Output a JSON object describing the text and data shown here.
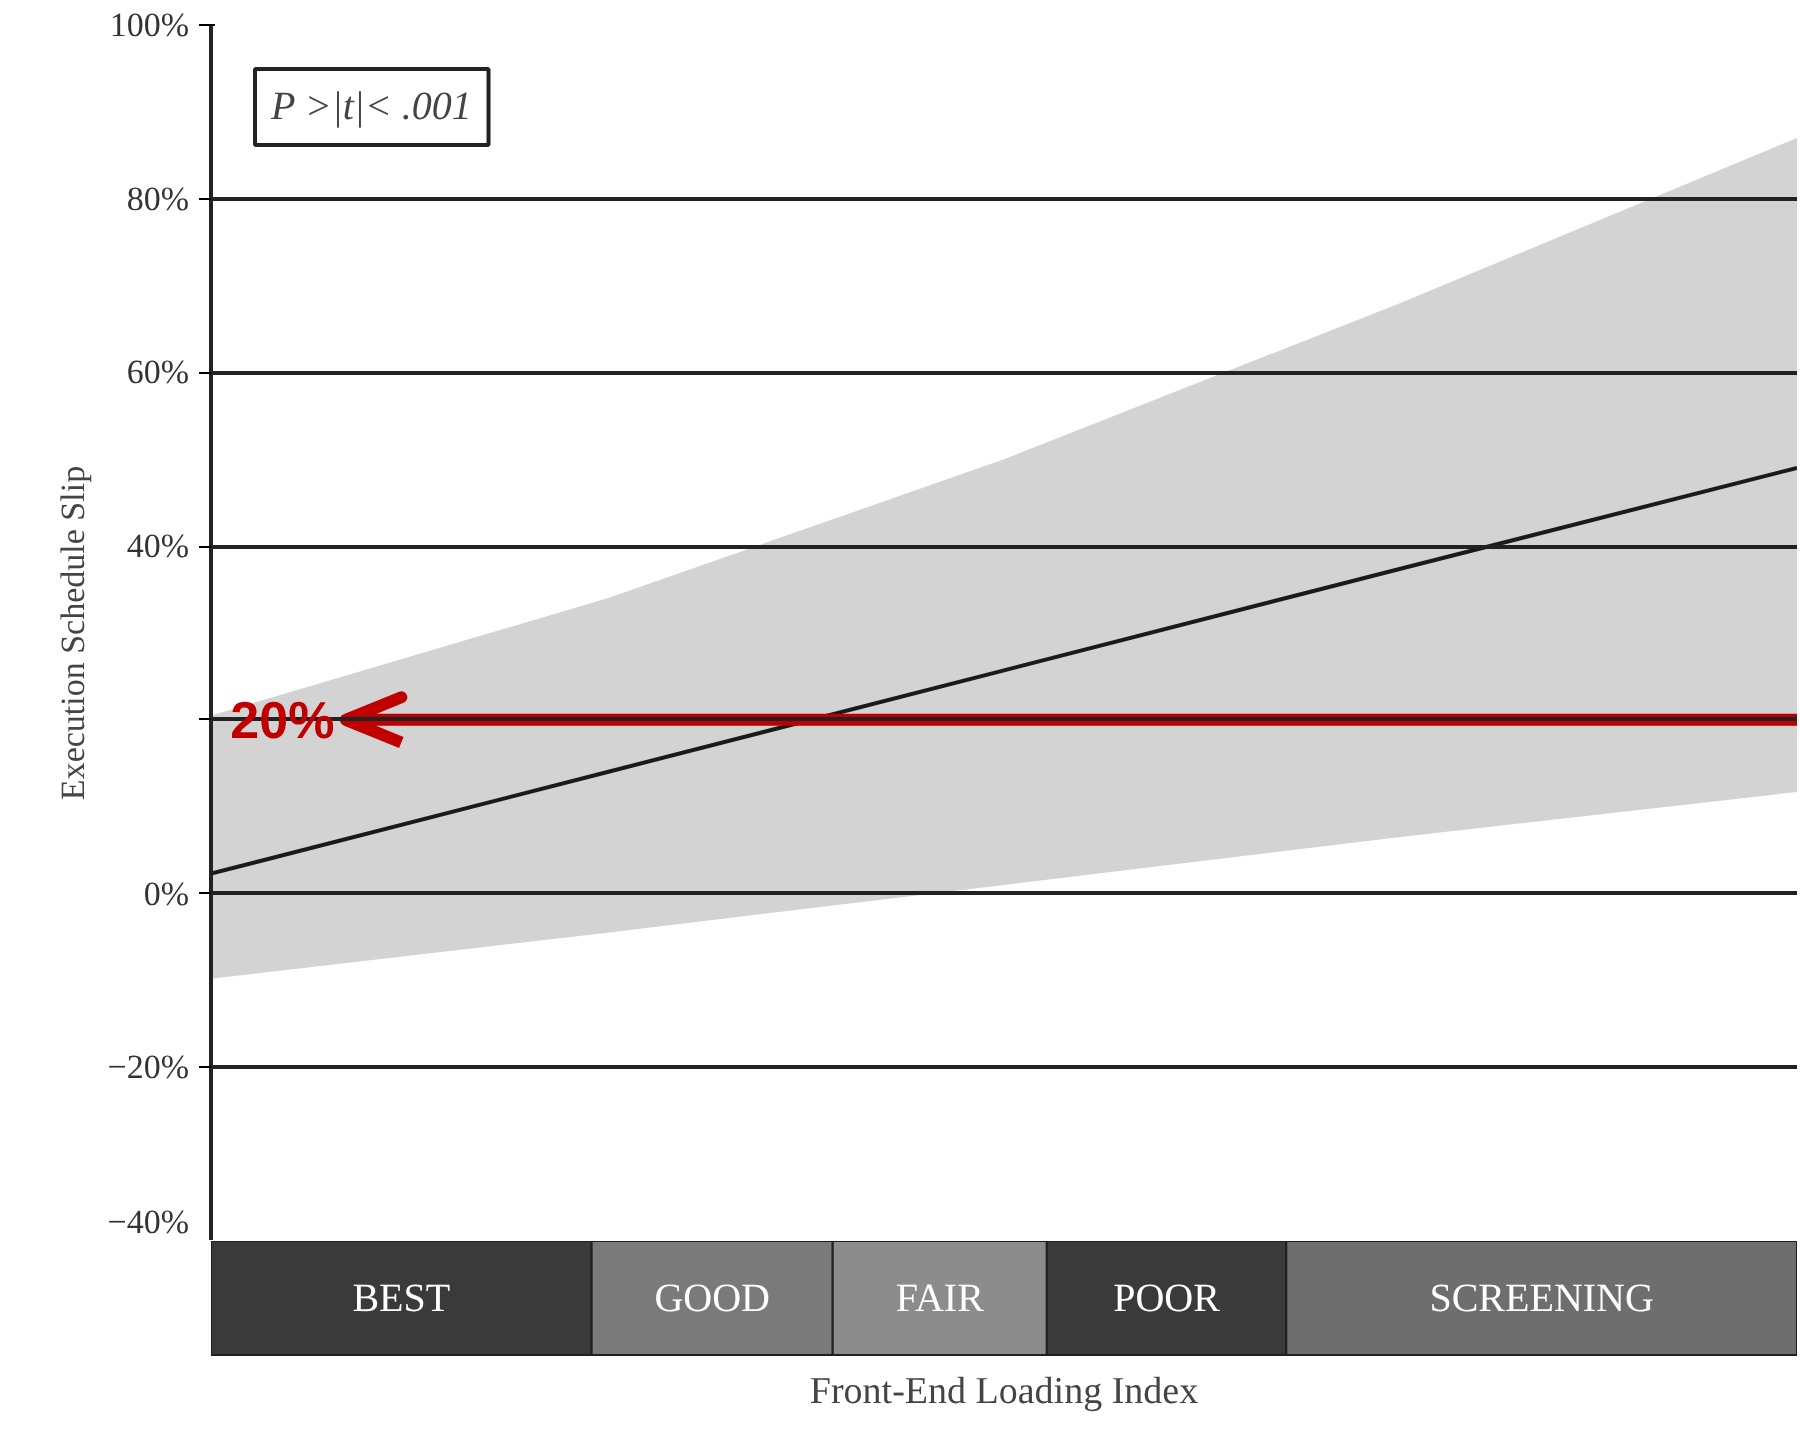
{
  "chart_data": {
    "type": "line",
    "xlabel": "Front-End Loading Index",
    "ylabel": "Execution Schedule Slip",
    "categories": [
      null,
      null,
      null,
      null,
      null
    ],
    "series": [
      {
        "color": "#1a1a1a",
        "values": [
          2.3,
          14,
          25.7,
          37.4,
          49
        ],
        "lower": [
          -9.8,
          -4.5,
          1,
          6.5,
          11.7
        ],
        "upper": [
          20.5,
          34,
          50,
          68,
          87
        ]
      }
    ],
    "ylim": [
      -40,
      100
    ],
    "yticks": [
      {
        "value": -40,
        "label": "−40%"
      },
      {
        "value": -20,
        "label": "−20%"
      },
      {
        "value": 0,
        "label": "0%"
      },
      {
        "value": 20,
        "label": null
      },
      {
        "value": 40,
        "label": "40%"
      },
      {
        "value": 60,
        "label": "60%"
      },
      {
        "value": 80,
        "label": "80%"
      },
      {
        "value": 100,
        "label": "100%"
      }
    ],
    "grid": "y",
    "marker": "none",
    "line_style": "solid",
    "ref_lines": [
      {
        "axis": "y",
        "value": 20,
        "label": "20%",
        "color": "#c00000"
      }
    ],
    "annotations": [
      "P >|t|< .001",
      "BEST",
      "GOOD",
      "FAIR",
      "POOR",
      "SCREENING"
    ]
  }
}
